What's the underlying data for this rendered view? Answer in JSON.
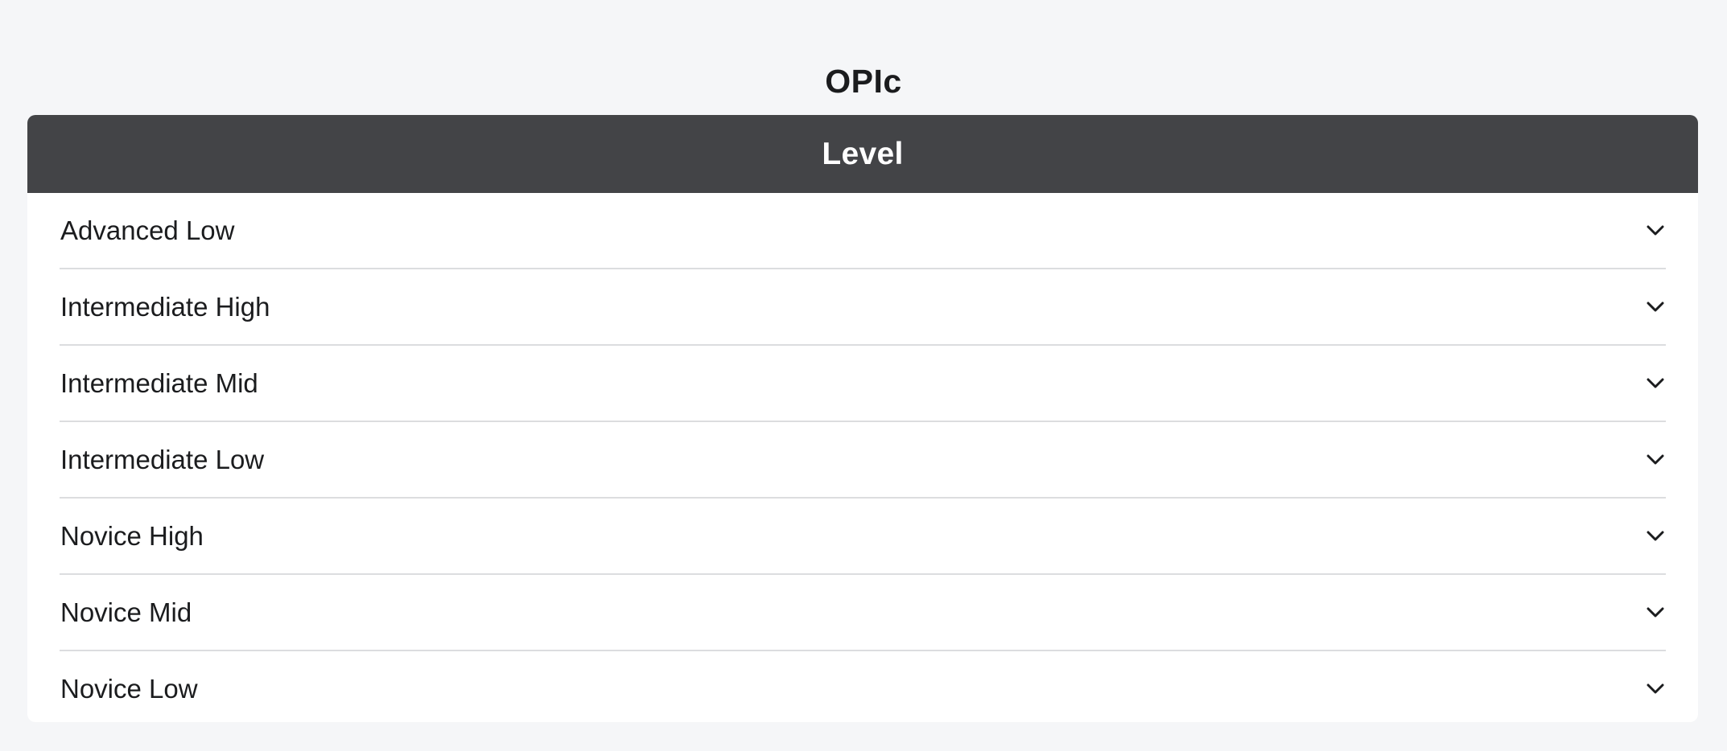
{
  "page": {
    "title": "OPIc"
  },
  "panel": {
    "header": "Level",
    "items": [
      {
        "label": "Advanced Low",
        "icon": "chevron-down-icon"
      },
      {
        "label": "Intermediate High",
        "icon": "chevron-down-icon"
      },
      {
        "label": "Intermediate Mid",
        "icon": "chevron-down-icon"
      },
      {
        "label": "Intermediate Low",
        "icon": "chevron-down-icon"
      },
      {
        "label": "Novice High",
        "icon": "chevron-down-icon"
      },
      {
        "label": "Novice Mid",
        "icon": "chevron-down-icon"
      },
      {
        "label": "Novice Low",
        "icon": "chevron-down-icon"
      }
    ]
  },
  "colors": {
    "background": "#f5f6f8",
    "header_bg": "#434447",
    "header_text": "#ffffff",
    "divider": "#dcdddf",
    "text": "#1b1c1e"
  }
}
